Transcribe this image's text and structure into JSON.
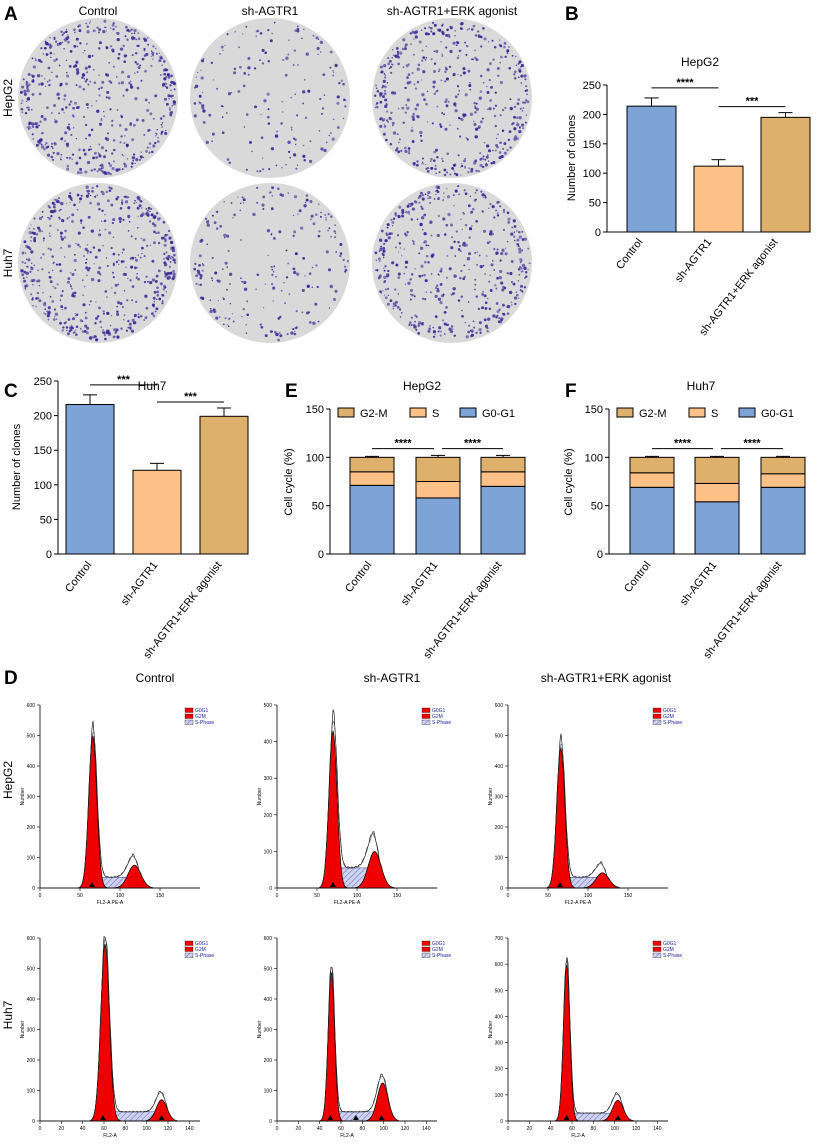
{
  "panels": {
    "A": "A",
    "B": "B",
    "C": "C",
    "D": "D",
    "E": "E",
    "F": "F"
  },
  "conditions": [
    "Control",
    "sh-AGTR1",
    "sh-AGTR1+ERK agonist"
  ],
  "cell_lines": [
    "HepG2",
    "Huh7"
  ],
  "colors": {
    "control": "#7ea3d6",
    "sh": "#fec288",
    "erk": "#ddb06c",
    "g2m": "#ddb06c",
    "s": "#fec288",
    "g0g1": "#7ea3d6",
    "plate_bg": "#d9d9d9",
    "colony": "#3b2a9a",
    "peak_red": "#ee0000",
    "s_phase": "#7b83c8"
  },
  "chart_data": [
    {
      "id": "B",
      "type": "bar",
      "title": "HepG2",
      "ylabel": "Number of clones",
      "xlabel": "",
      "categories": [
        "Control",
        "sh-AGTR1",
        "sh-AGTR1+ERK agonist"
      ],
      "values": [
        214,
        112,
        195
      ],
      "errors": [
        14,
        11,
        8
      ],
      "ylim": [
        0,
        250
      ],
      "yticks": [
        0,
        50,
        100,
        150,
        200,
        250
      ],
      "significance": [
        {
          "from": 0,
          "to": 1,
          "label": "****"
        },
        {
          "from": 1,
          "to": 2,
          "label": "***"
        }
      ]
    },
    {
      "id": "C",
      "type": "bar",
      "title": "Huh7",
      "ylabel": "Number of clones",
      "xlabel": "",
      "categories": [
        "Control",
        "sh-AGTR1",
        "sh-AGTR1+ERK agonist"
      ],
      "values": [
        216,
        121,
        199
      ],
      "errors": [
        14,
        10,
        12
      ],
      "ylim": [
        0,
        250
      ],
      "yticks": [
        0,
        50,
        100,
        150,
        200,
        250
      ],
      "significance": [
        {
          "from": 0,
          "to": 1,
          "label": "***"
        },
        {
          "from": 1,
          "to": 2,
          "label": "***"
        }
      ]
    },
    {
      "id": "E",
      "type": "bar",
      "stacked": true,
      "title": "HepG2",
      "ylabel": "Cell cycle (%)",
      "xlabel": "",
      "categories": [
        "Control",
        "sh-AGTR1",
        "sh-AGTR1+ERK agonist"
      ],
      "series": [
        {
          "name": "G0-G1",
          "values": [
            71,
            58,
            70
          ],
          "errors": [
            2,
            2,
            2
          ]
        },
        {
          "name": "S",
          "values": [
            14,
            17,
            15
          ],
          "errors": [
            2,
            2,
            2
          ]
        },
        {
          "name": "G2-M",
          "values": [
            15,
            25,
            15
          ],
          "errors": [
            1,
            2,
            2
          ]
        }
      ],
      "legend_order": [
        "G2-M",
        "S",
        "G0-G1"
      ],
      "ylim": [
        0,
        150
      ],
      "yticks": [
        0,
        50,
        100,
        150
      ],
      "significance": [
        {
          "from": 0,
          "to": 1,
          "label": "****"
        },
        {
          "from": 1,
          "to": 2,
          "label": "****"
        }
      ]
    },
    {
      "id": "F",
      "type": "bar",
      "stacked": true,
      "title": "Huh7",
      "ylabel": "Cell cycle (%)",
      "xlabel": "",
      "categories": [
        "Control",
        "sh-AGTR1",
        "sh-AGTR1+ERK agonist"
      ],
      "series": [
        {
          "name": "G0-G1",
          "values": [
            69,
            54,
            69
          ],
          "errors": [
            1,
            3,
            2
          ]
        },
        {
          "name": "S",
          "values": [
            15,
            19,
            14
          ],
          "errors": [
            1,
            2,
            2
          ]
        },
        {
          "name": "G2-M",
          "values": [
            16,
            27,
            17
          ],
          "errors": [
            1,
            1,
            1
          ]
        }
      ],
      "legend_order": [
        "G2-M",
        "S",
        "G0-G1"
      ],
      "ylim": [
        0,
        150
      ],
      "yticks": [
        0,
        50,
        100,
        150
      ],
      "significance": [
        {
          "from": 0,
          "to": 1,
          "label": "****"
        },
        {
          "from": 1,
          "to": 2,
          "label": "****"
        }
      ]
    },
    {
      "id": "D",
      "type": "area",
      "title": "Flow cytometry histograms",
      "ylabel": "Number",
      "legend": [
        "G0G1",
        "G2M",
        "S-Phase"
      ],
      "plots": [
        {
          "row": "HepG2",
          "col": "Control",
          "xlabel": "FL2-A PE-A",
          "xlim": [
            0,
            200
          ],
          "xticks": [
            0,
            50,
            100,
            150
          ],
          "ylim": [
            0,
            600
          ],
          "yticks": [
            0,
            100,
            200,
            300,
            400,
            500,
            600
          ],
          "g1": {
            "pos": 66,
            "height": 500,
            "width": 5
          },
          "g2": {
            "pos": 118,
            "height": 75,
            "width": 8
          },
          "s": {
            "height": 35
          },
          "markers": [
            65
          ]
        },
        {
          "row": "HepG2",
          "col": "sh-AGTR1",
          "xlabel": "FL2-A PE-A",
          "xlim": [
            0,
            200
          ],
          "xticks": [
            0,
            50,
            100,
            150
          ],
          "ylim": [
            0,
            500
          ],
          "yticks": [
            0,
            100,
            200,
            300,
            400,
            500
          ],
          "g1": {
            "pos": 70,
            "height": 430,
            "width": 5
          },
          "g2": {
            "pos": 122,
            "height": 100,
            "width": 8
          },
          "s": {
            "height": 55
          },
          "markers": [
            70
          ]
        },
        {
          "row": "HepG2",
          "col": "sh-AGTR1+ERK agonist",
          "xlabel": "FL2-A PE-A",
          "xlim": [
            0,
            200
          ],
          "xticks": [
            0,
            50,
            100,
            150
          ],
          "ylim": [
            0,
            600
          ],
          "yticks": [
            0,
            100,
            200,
            300,
            400,
            500,
            600
          ],
          "g1": {
            "pos": 66,
            "height": 460,
            "width": 5
          },
          "g2": {
            "pos": 118,
            "height": 50,
            "width": 8
          },
          "s": {
            "height": 35
          },
          "markers": [
            65
          ]
        },
        {
          "row": "Huh7",
          "col": "Control",
          "xlabel": "FL2-A",
          "xlim": [
            0,
            150
          ],
          "xticks": [
            0,
            20,
            40,
            60,
            80,
            100,
            120,
            140
          ],
          "ylim": [
            0,
            600
          ],
          "yticks": [
            0,
            100,
            200,
            300,
            400,
            500,
            600
          ],
          "g1": {
            "pos": 61,
            "height": 580,
            "width": 4
          },
          "g2": {
            "pos": 114,
            "height": 70,
            "width": 5
          },
          "s": {
            "height": 30
          },
          "markers": [
            59,
            114
          ]
        },
        {
          "row": "Huh7",
          "col": "sh-AGTR1",
          "xlabel": "FL2-A",
          "xlim": [
            0,
            150
          ],
          "xticks": [
            0,
            20,
            40,
            60,
            80,
            100,
            120,
            140
          ],
          "ylim": [
            0,
            600
          ],
          "yticks": [
            0,
            100,
            200,
            300,
            400,
            500,
            600
          ],
          "g1": {
            "pos": 51,
            "height": 490,
            "width": 3
          },
          "g2": {
            "pos": 99,
            "height": 125,
            "width": 5
          },
          "s": {
            "height": 30
          },
          "markers": [
            50,
            74,
            98
          ]
        },
        {
          "row": "Huh7",
          "col": "sh-AGTR1+ERK agonist",
          "xlabel": "FL2-A",
          "xlim": [
            0,
            150
          ],
          "xticks": [
            0,
            20,
            40,
            60,
            80,
            100,
            120,
            140
          ],
          "ylim": [
            0,
            700
          ],
          "yticks": [
            0,
            100,
            200,
            300,
            400,
            500,
            600,
            700
          ],
          "g1": {
            "pos": 55,
            "height": 600,
            "width": 3
          },
          "g2": {
            "pos": 103,
            "height": 80,
            "width": 5
          },
          "s": {
            "height": 30
          },
          "markers": [
            55,
            103
          ]
        }
      ]
    }
  ]
}
